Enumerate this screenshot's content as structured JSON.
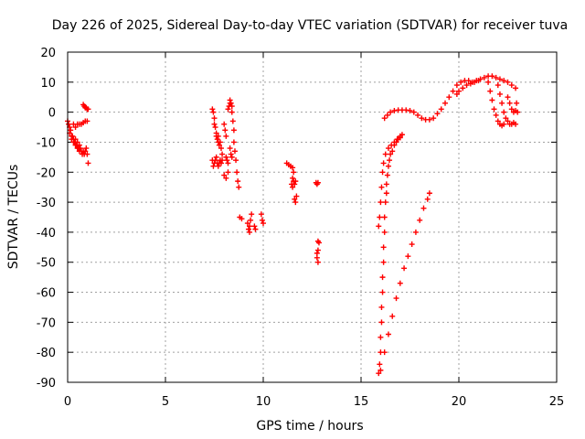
{
  "chart_data": {
    "type": "scatter",
    "title": "Day 226 of 2025, Sidereal Day-to-day VTEC variation (SDTVAR) for receiver tuva",
    "xlabel": "GPS time / hours",
    "ylabel": "SDTVAR / TECUs",
    "xlim": [
      0,
      25
    ],
    "ylim": [
      -90,
      20
    ],
    "xticks": [
      0,
      5,
      10,
      15,
      20,
      25
    ],
    "yticks": [
      20,
      10,
      0,
      -10,
      -20,
      -30,
      -40,
      -50,
      -60,
      -70,
      -80,
      -90
    ],
    "xtick_labels": [
      "0",
      "5",
      "10",
      "15",
      "20",
      "25"
    ],
    "ytick_labels": [
      "20",
      "10",
      "0",
      "-10",
      "-20",
      "-30",
      "-40",
      "-50",
      "-60",
      "-70",
      "-80",
      "-90"
    ],
    "grid": true,
    "marker": "+",
    "color": "#ff0000",
    "series": [
      {
        "name": "SDTVAR",
        "points": [
          [
            0.0,
            -3
          ],
          [
            0.05,
            -4
          ],
          [
            0.1,
            -5
          ],
          [
            0.1,
            -7
          ],
          [
            0.15,
            -6
          ],
          [
            0.2,
            -8
          ],
          [
            0.2,
            -9
          ],
          [
            0.25,
            -8
          ],
          [
            0.3,
            -9
          ],
          [
            0.3,
            -10
          ],
          [
            0.35,
            -10
          ],
          [
            0.4,
            -9
          ],
          [
            0.4,
            -11
          ],
          [
            0.45,
            -11
          ],
          [
            0.5,
            -10
          ],
          [
            0.5,
            -12
          ],
          [
            0.55,
            -12
          ],
          [
            0.6,
            -11
          ],
          [
            0.6,
            -13
          ],
          [
            0.65,
            -12
          ],
          [
            0.7,
            -13
          ],
          [
            0.75,
            -14
          ],
          [
            0.8,
            -13
          ],
          [
            0.85,
            -14
          ],
          [
            0.9,
            -13
          ],
          [
            0.95,
            -12
          ],
          [
            1.0,
            -14
          ],
          [
            1.05,
            -17
          ],
          [
            0.3,
            -4
          ],
          [
            0.4,
            -5
          ],
          [
            0.5,
            -4
          ],
          [
            0.6,
            -4
          ],
          [
            0.7,
            -4
          ],
          [
            0.8,
            -3.5
          ],
          [
            0.9,
            -3
          ],
          [
            1.0,
            -3
          ],
          [
            0.8,
            2.5
          ],
          [
            0.85,
            2
          ],
          [
            0.9,
            1.5
          ],
          [
            0.95,
            1.5
          ],
          [
            1.0,
            1
          ],
          [
            1.05,
            1
          ],
          [
            7.4,
            1
          ],
          [
            7.45,
            0
          ],
          [
            7.5,
            -2
          ],
          [
            7.5,
            -4
          ],
          [
            7.55,
            -5
          ],
          [
            7.6,
            -7
          ],
          [
            7.6,
            -8
          ],
          [
            7.65,
            -9
          ],
          [
            7.7,
            -8
          ],
          [
            7.7,
            -10
          ],
          [
            7.75,
            -11
          ],
          [
            7.8,
            -10
          ],
          [
            7.85,
            -12
          ],
          [
            7.9,
            -14
          ],
          [
            7.4,
            -16
          ],
          [
            7.45,
            -18
          ],
          [
            7.5,
            -17
          ],
          [
            7.55,
            -16
          ],
          [
            7.6,
            -15
          ],
          [
            7.65,
            -17
          ],
          [
            7.7,
            -18
          ],
          [
            7.75,
            -17
          ],
          [
            7.8,
            -16
          ],
          [
            7.85,
            -17
          ],
          [
            7.9,
            -16
          ],
          [
            8.0,
            -4
          ],
          [
            8.05,
            -6
          ],
          [
            8.1,
            -8
          ],
          [
            8.1,
            -15
          ],
          [
            8.15,
            -16
          ],
          [
            8.2,
            -17
          ],
          [
            8.2,
            -20
          ],
          [
            8.0,
            -21
          ],
          [
            8.1,
            -22
          ],
          [
            8.2,
            1
          ],
          [
            8.25,
            2
          ],
          [
            8.3,
            3
          ],
          [
            8.3,
            4
          ],
          [
            8.35,
            3
          ],
          [
            8.4,
            2
          ],
          [
            8.4,
            0
          ],
          [
            8.45,
            -3
          ],
          [
            8.5,
            -6
          ],
          [
            8.5,
            -10
          ],
          [
            8.55,
            -13
          ],
          [
            8.6,
            -16
          ],
          [
            8.65,
            -20
          ],
          [
            8.7,
            -23
          ],
          [
            8.75,
            -25
          ],
          [
            8.3,
            -12
          ],
          [
            8.35,
            -14
          ],
          [
            8.4,
            -15
          ],
          [
            8.8,
            -35
          ],
          [
            8.9,
            -35.5
          ],
          [
            9.2,
            -37
          ],
          [
            9.25,
            -39
          ],
          [
            9.3,
            -40
          ],
          [
            9.3,
            -38
          ],
          [
            9.35,
            -36
          ],
          [
            9.4,
            -34
          ],
          [
            9.55,
            -38
          ],
          [
            9.6,
            -39
          ],
          [
            9.9,
            -34
          ],
          [
            9.95,
            -36
          ],
          [
            10.0,
            -37
          ],
          [
            11.2,
            -17
          ],
          [
            11.3,
            -17.5
          ],
          [
            11.4,
            -18
          ],
          [
            11.5,
            -18.5
          ],
          [
            11.55,
            -20
          ],
          [
            11.5,
            -22
          ],
          [
            11.45,
            -24
          ],
          [
            11.5,
            -25
          ],
          [
            11.55,
            -23
          ],
          [
            11.6,
            -24
          ],
          [
            11.65,
            -23
          ],
          [
            11.6,
            -29
          ],
          [
            11.65,
            -30
          ],
          [
            11.7,
            -28
          ],
          [
            12.7,
            -23.5
          ],
          [
            12.75,
            -24
          ],
          [
            12.8,
            -23.5
          ],
          [
            12.8,
            -43
          ],
          [
            12.85,
            -43.5
          ],
          [
            12.8,
            -46
          ],
          [
            12.75,
            -47
          ],
          [
            12.75,
            -48.5
          ],
          [
            12.8,
            -50
          ],
          [
            15.9,
            -87
          ],
          [
            15.95,
            -84
          ],
          [
            16.0,
            -80
          ],
          [
            16.0,
            -75
          ],
          [
            16.05,
            -70
          ],
          [
            16.05,
            -65
          ],
          [
            16.1,
            -60
          ],
          [
            16.1,
            -55
          ],
          [
            16.15,
            -50
          ],
          [
            16.15,
            -45
          ],
          [
            16.2,
            -40
          ],
          [
            16.2,
            -35
          ],
          [
            16.25,
            -30
          ],
          [
            16.3,
            -27
          ],
          [
            16.3,
            -24
          ],
          [
            16.35,
            -21
          ],
          [
            16.4,
            -18
          ],
          [
            16.45,
            -16
          ],
          [
            16.5,
            -14
          ],
          [
            16.6,
            -13
          ],
          [
            16.7,
            -11
          ],
          [
            16.8,
            -10
          ],
          [
            16.9,
            -9
          ],
          [
            17.0,
            -8
          ],
          [
            17.1,
            -7.5
          ],
          [
            15.9,
            -38
          ],
          [
            15.95,
            -35
          ],
          [
            16.0,
            -30
          ],
          [
            16.05,
            -25
          ],
          [
            16.1,
            -20
          ],
          [
            16.15,
            -17
          ],
          [
            16.25,
            -14
          ],
          [
            16.4,
            -12
          ],
          [
            16.55,
            -11
          ],
          [
            16.7,
            -10
          ],
          [
            16.85,
            -9
          ],
          [
            17.0,
            -8.5
          ],
          [
            16.0,
            -86
          ],
          [
            16.2,
            -80
          ],
          [
            16.4,
            -74
          ],
          [
            16.6,
            -68
          ],
          [
            16.8,
            -62
          ],
          [
            17.0,
            -57
          ],
          [
            17.2,
            -52
          ],
          [
            17.4,
            -48
          ],
          [
            17.6,
            -44
          ],
          [
            17.8,
            -40
          ],
          [
            18.0,
            -36
          ],
          [
            18.2,
            -32
          ],
          [
            18.4,
            -29
          ],
          [
            18.5,
            -27
          ],
          [
            16.2,
            -2
          ],
          [
            16.35,
            -1
          ],
          [
            16.5,
            0
          ],
          [
            16.7,
            0.5
          ],
          [
            16.9,
            0.7
          ],
          [
            17.1,
            0.7
          ],
          [
            17.3,
            0.7
          ],
          [
            17.5,
            0.5
          ],
          [
            17.7,
            0
          ],
          [
            17.9,
            -1
          ],
          [
            18.1,
            -2
          ],
          [
            18.3,
            -2.5
          ],
          [
            18.5,
            -2.5
          ],
          [
            18.7,
            -2
          ],
          [
            18.9,
            -0.5
          ],
          [
            19.1,
            1
          ],
          [
            19.3,
            3
          ],
          [
            19.5,
            5
          ],
          [
            19.7,
            7
          ],
          [
            19.9,
            9
          ],
          [
            20.1,
            10
          ],
          [
            20.3,
            10.5
          ],
          [
            20.5,
            10.5
          ],
          [
            20.7,
            10
          ],
          [
            20.9,
            10.5
          ],
          [
            21.1,
            11
          ],
          [
            21.3,
            11.5
          ],
          [
            21.5,
            12
          ],
          [
            21.7,
            12
          ],
          [
            21.9,
            11.5
          ],
          [
            22.1,
            11
          ],
          [
            22.3,
            10.5
          ],
          [
            22.5,
            10
          ],
          [
            22.7,
            9
          ],
          [
            22.9,
            8
          ],
          [
            19.9,
            6
          ],
          [
            20.0,
            7
          ],
          [
            20.2,
            8
          ],
          [
            20.4,
            9
          ],
          [
            20.6,
            9.5
          ],
          [
            20.8,
            10
          ],
          [
            21.0,
            10.5
          ],
          [
            21.5,
            10
          ],
          [
            21.6,
            7
          ],
          [
            21.7,
            4
          ],
          [
            21.8,
            1
          ],
          [
            21.9,
            -1
          ],
          [
            22.0,
            -3
          ],
          [
            22.1,
            -4
          ],
          [
            22.2,
            -4.5
          ],
          [
            22.3,
            -4
          ],
          [
            22.0,
            9
          ],
          [
            22.1,
            6
          ],
          [
            22.2,
            3
          ],
          [
            22.3,
            0
          ],
          [
            22.4,
            -2
          ],
          [
            22.5,
            -3
          ],
          [
            22.6,
            -4
          ],
          [
            22.7,
            -4
          ],
          [
            22.8,
            -3.5
          ],
          [
            22.9,
            -4
          ],
          [
            22.5,
            5
          ],
          [
            22.6,
            3
          ],
          [
            22.7,
            1
          ],
          [
            22.8,
            0
          ],
          [
            22.9,
            0.5
          ],
          [
            22.95,
            3
          ],
          [
            23.0,
            0
          ]
        ]
      }
    ]
  }
}
